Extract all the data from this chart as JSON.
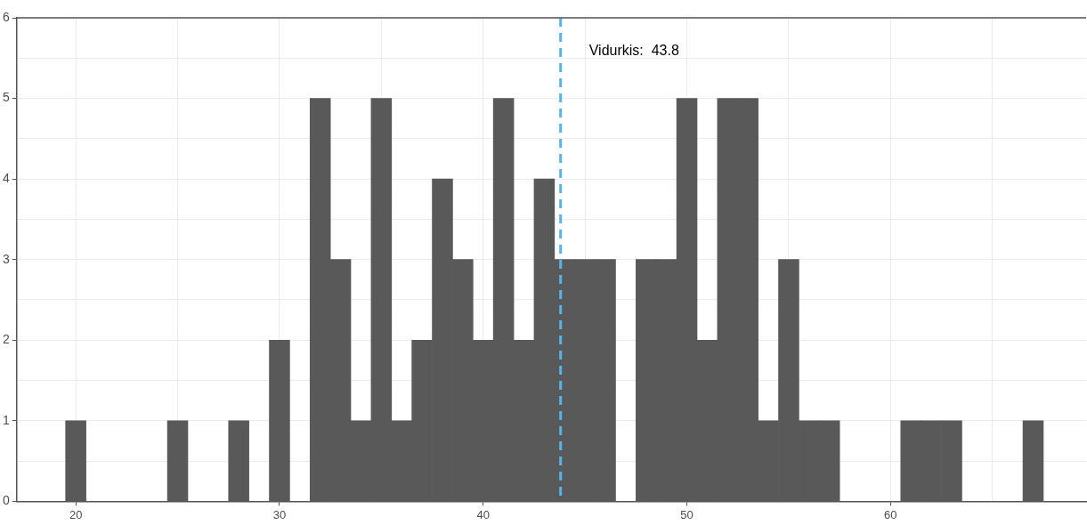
{
  "chart_data": {
    "type": "histogram",
    "bins": [
      19.5,
      20.5,
      21.5,
      22.5,
      23.5,
      24.5,
      25.5,
      26.5,
      27.5,
      28.5,
      29.5,
      30.5,
      31.5,
      32.5,
      33.5,
      34.5,
      35.5,
      36.5,
      37.5,
      38.5,
      39.5,
      40.5,
      41.5,
      42.5,
      43.5,
      44.5,
      45.5,
      46.5,
      47.5,
      48.5,
      49.5,
      50.5,
      51.5,
      52.5,
      53.5,
      54.5,
      55.5,
      56.5,
      57.5,
      58.5,
      59.5,
      60.5,
      61.5,
      62.5,
      63.5,
      64.5,
      65.5,
      66.5,
      67.5
    ],
    "values": [
      1,
      0,
      0,
      0,
      0,
      1,
      0,
      0,
      1,
      0,
      2,
      0,
      5,
      3,
      1,
      5,
      1,
      2,
      4,
      3,
      2,
      5,
      2,
      4,
      3,
      3,
      3,
      0,
      3,
      3,
      5,
      2,
      5,
      5,
      1,
      3,
      1,
      1,
      0,
      0,
      0,
      1,
      1,
      1,
      0,
      0,
      0,
      1
    ],
    "color": "#595959",
    "xlim": [
      17.1,
      69.6
    ],
    "xticks": [
      20,
      {
        "value": 25,
        "label": null
      },
      30,
      {
        "value": 35,
        "label": null
      },
      40,
      {
        "value": 45,
        "label": null
      },
      50,
      {
        "value": 55,
        "label": null
      },
      60,
      {
        "value": 65,
        "label": null
      }
    ],
    "ylim": [
      0,
      6
    ],
    "yticks": [
      0,
      {
        "value": 0.5,
        "label": null
      },
      1,
      {
        "value": 1.5,
        "label": null
      },
      2,
      {
        "value": 2.5,
        "label": null
      },
      3,
      {
        "value": 3.5,
        "label": null
      },
      4,
      {
        "value": 4.5,
        "label": null
      },
      5,
      {
        "value": 5.5,
        "label": null
      },
      6
    ],
    "grid": true,
    "ref_lines": [
      {
        "axis": "x",
        "value": 43.8,
        "label": "Vidurkis:  43.8",
        "color": "#56b4e9",
        "line_style": "dashed"
      }
    ]
  }
}
